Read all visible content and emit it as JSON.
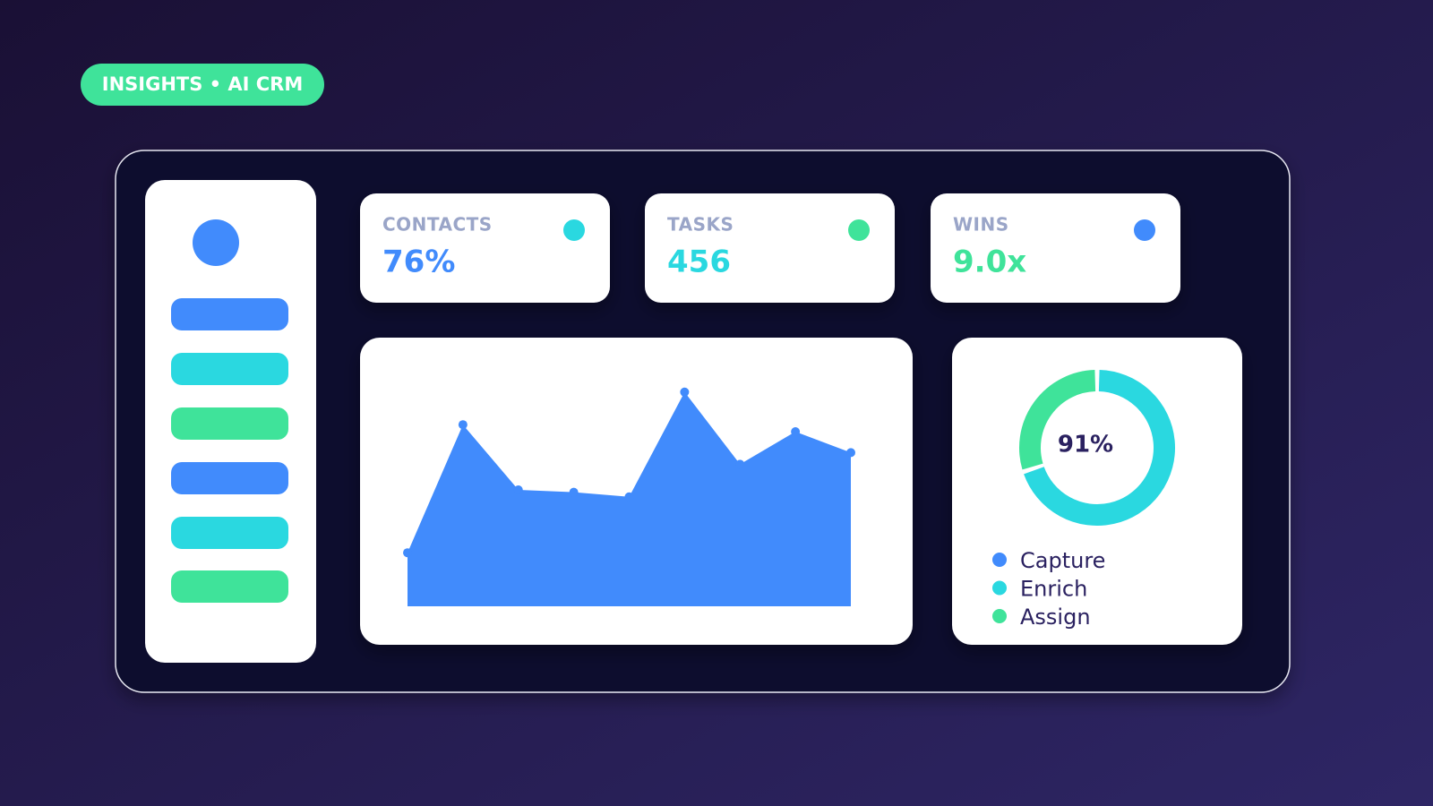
{
  "header": {
    "badge": "INSIGHTS • AI CRM"
  },
  "kpis": [
    {
      "label": "CONTACTS",
      "value": "76%"
    },
    {
      "label": "TASKS",
      "value": "456"
    },
    {
      "label": "WINS",
      "value": "9.0x"
    }
  ],
  "chart_data": [
    {
      "type": "area",
      "values": [
        23,
        78,
        50,
        49,
        47,
        92,
        61,
        75,
        66
      ],
      "ylim": [
        0,
        100
      ],
      "color": "#418bfc"
    },
    {
      "type": "donut",
      "center_label": "91%",
      "categories": [
        "Capture",
        "Enrich",
        "Assign"
      ],
      "values": [
        0,
        70,
        30
      ],
      "colors": [
        "#418bfc",
        "#2ad8e0",
        "#3fe39a"
      ]
    }
  ]
}
